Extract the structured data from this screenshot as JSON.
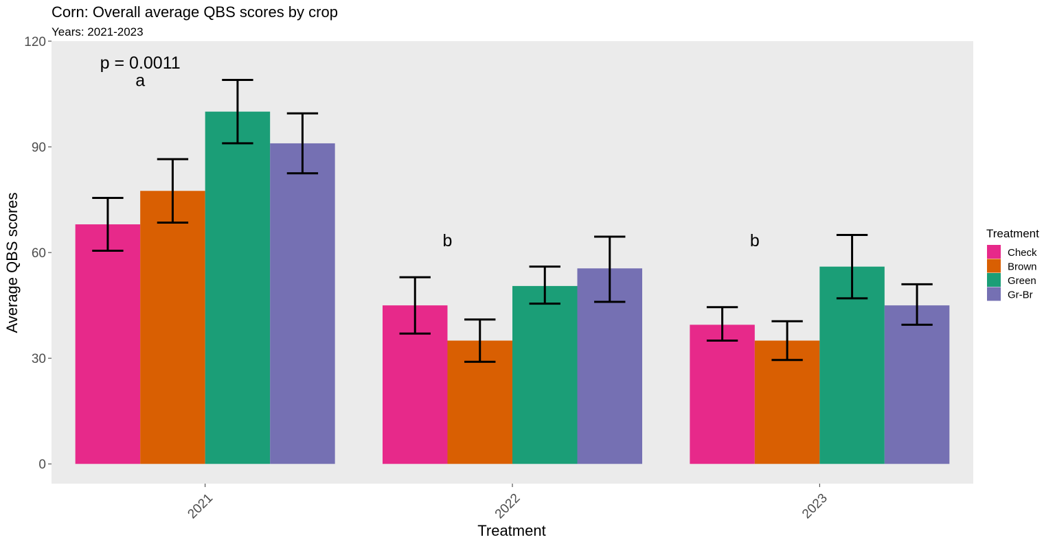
{
  "chart_data": {
    "type": "bar",
    "title": "Corn: Overall average QBS scores by crop",
    "subtitle": "Years: 2021-2023",
    "xlabel": "Treatment",
    "ylabel": "Average QBS scores",
    "categories": [
      "2021",
      "2022",
      "2023"
    ],
    "ylim": [
      -5.6,
      120
    ],
    "yticks": [
      0,
      30,
      60,
      90,
      120
    ],
    "grid": false,
    "legend": {
      "title": "Treatment",
      "position": "right"
    },
    "series": [
      {
        "name": "Check",
        "color": "#E7298A",
        "values": [
          68,
          45,
          39.5
        ],
        "err_low": [
          60.5,
          37,
          35
        ],
        "err_high": [
          75.5,
          53,
          44.5
        ]
      },
      {
        "name": "Brown",
        "color": "#D95F02",
        "values": [
          77.5,
          35,
          35
        ],
        "err_low": [
          68.5,
          29,
          29.5
        ],
        "err_high": [
          86.5,
          41,
          40.5
        ]
      },
      {
        "name": "Green",
        "color": "#1B9E77",
        "values": [
          100,
          50.5,
          56
        ],
        "err_low": [
          91,
          45.5,
          47
        ],
        "err_high": [
          109,
          56,
          65
        ]
      },
      {
        "name": "Gr-Br",
        "color": "#7570B3",
        "values": [
          91,
          55.5,
          45
        ],
        "err_low": [
          82.5,
          46,
          39.5
        ],
        "err_high": [
          99.5,
          64.5,
          51
        ]
      }
    ],
    "annotations": [
      {
        "text": "p = 0.0011",
        "category": "2021",
        "y": 114
      },
      {
        "text": "a",
        "category": "2021",
        "y": 109
      },
      {
        "text": "b",
        "category": "2022",
        "y": 63.5
      },
      {
        "text": "b",
        "category": "2023",
        "y": 63.5
      }
    ]
  }
}
